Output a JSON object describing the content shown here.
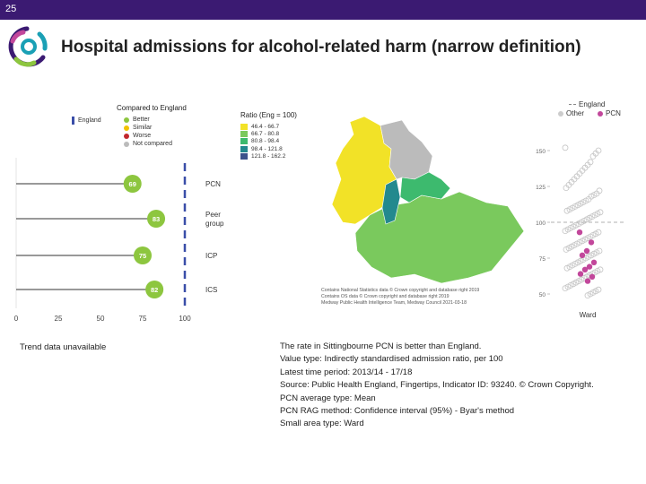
{
  "slide_number": "25",
  "title": "Hospital admissions for alcohol-related harm (narrow definition)",
  "colors": {
    "topbar": "#3b1a72",
    "better": "#8dc63f",
    "similar": "#f2c200",
    "worse": "#c1272d",
    "not_compared": "#bbbbbb",
    "england_line": "#3a4ea8",
    "pcn_highlight": "#c2479b"
  },
  "comparison_legend": {
    "title": "Compared to England",
    "england_label": "England",
    "items": [
      "Better",
      "Similar",
      "Worse",
      "Not compared"
    ]
  },
  "ratio_legend": {
    "title": "Ratio (Eng = 100)",
    "bins": [
      {
        "label": "46.4 - 66.7",
        "color": "#f2e227"
      },
      {
        "label": "66.7 - 80.8",
        "color": "#7ac95d"
      },
      {
        "label": "80.8 - 98.4",
        "color": "#3dba6e"
      },
      {
        "label": "98.4 - 121.8",
        "color": "#23898e"
      },
      {
        "label": "121.8 - 162.2",
        "color": "#3b528b"
      }
    ]
  },
  "ward_legend": {
    "england_label": "England",
    "other_label": "Other",
    "pcn_label": "PCN",
    "axis_label": "Ward"
  },
  "map_credits": [
    "Contains National Statistics data © Crown copyright and database right 2019",
    "Contains OS data © Crown copyright and database right 2019",
    "Medway Public Health Intelligence Team, Medway Council 2021-03-18"
  ],
  "trend_text": "Trend data unavailable",
  "notes": [
    "The rate in Sittingbourne PCN is better than England.",
    "Value type: Indirectly standardised admission ratio, per 100",
    "Latest time period: 2013/14 - 17/18",
    "Source: Public Health England, Fingertips, Indicator ID: 93240. © Crown Copyright.",
    "PCN average type: Mean",
    "PCN RAG method: Confidence interval (95%) - Byar's method",
    "Small area type: Ward"
  ],
  "chart_data": [
    {
      "type": "lollipop",
      "categories": [
        "PCN",
        "Peer group",
        "ICP",
        "ICS"
      ],
      "values": [
        69,
        83,
        75,
        82
      ],
      "status": [
        "Better",
        "Better",
        "Better",
        "Better"
      ],
      "xlim": [
        0,
        100
      ],
      "xticks": [
        0,
        25,
        50,
        75,
        100
      ],
      "reference": 100
    },
    {
      "type": "scatter",
      "ylim": [
        40,
        165
      ],
      "yticks": [
        50,
        75,
        100,
        125,
        150
      ],
      "reference": 100,
      "other_wards": [
        152,
        150,
        148,
        146,
        142,
        140,
        138,
        136,
        134,
        132,
        130,
        128,
        126,
        124,
        122,
        120,
        119,
        118,
        116,
        115,
        114,
        113,
        112,
        111,
        110,
        109,
        108,
        107,
        106,
        105,
        104,
        103,
        102,
        101,
        100,
        99,
        98,
        97,
        96,
        95,
        94,
        93,
        92,
        91,
        90,
        89,
        88,
        87,
        86,
        85,
        84,
        83,
        82,
        81,
        80,
        79,
        78,
        77,
        76,
        75,
        74,
        73,
        72,
        71,
        70,
        69,
        68,
        67,
        66,
        65,
        64,
        63,
        62,
        61,
        60,
        59,
        58,
        57,
        56,
        55,
        54,
        53,
        52,
        51,
        50,
        49
      ],
      "pcn_wards": [
        93,
        86,
        80,
        77,
        72,
        69,
        67,
        64,
        62,
        59
      ]
    }
  ]
}
